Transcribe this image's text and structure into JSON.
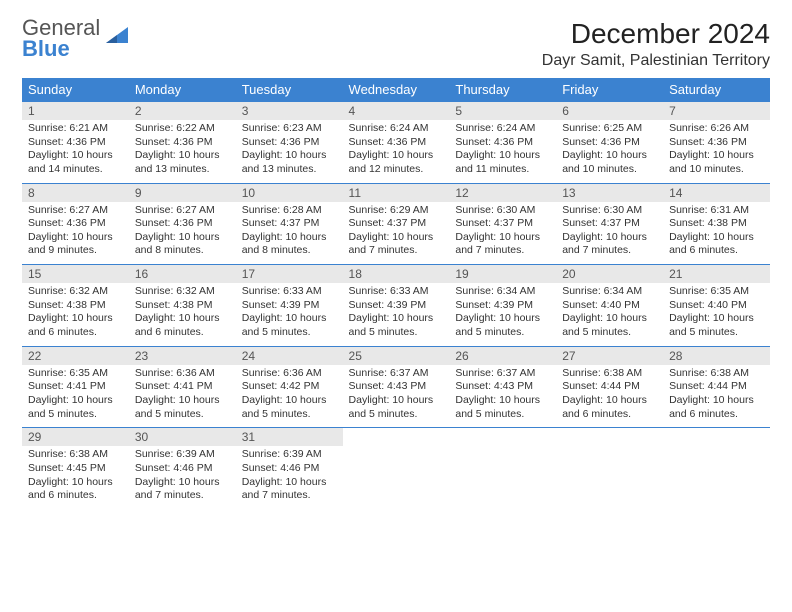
{
  "logo": {
    "line1": "General",
    "line2": "Blue"
  },
  "title": "December 2024",
  "location": "Dayr Samit, Palestinian Territory",
  "colors": {
    "header_bg": "#3b82d0",
    "header_text": "#ffffff",
    "daynum_bg": "#e8e8e8",
    "row_border": "#3b82d0",
    "body_text": "#333333",
    "logo_gray": "#555555",
    "logo_blue": "#3b82d0",
    "page_bg": "#ffffff"
  },
  "typography": {
    "title_fontsize": 28,
    "location_fontsize": 16,
    "weekday_fontsize": 13,
    "daynum_fontsize": 12,
    "body_fontsize": 10.5
  },
  "weekdays": [
    "Sunday",
    "Monday",
    "Tuesday",
    "Wednesday",
    "Thursday",
    "Friday",
    "Saturday"
  ],
  "weeks": [
    [
      {
        "n": "1",
        "sr": "Sunrise: 6:21 AM",
        "ss": "Sunset: 4:36 PM",
        "d1": "Daylight: 10 hours",
        "d2": "and 14 minutes."
      },
      {
        "n": "2",
        "sr": "Sunrise: 6:22 AM",
        "ss": "Sunset: 4:36 PM",
        "d1": "Daylight: 10 hours",
        "d2": "and 13 minutes."
      },
      {
        "n": "3",
        "sr": "Sunrise: 6:23 AM",
        "ss": "Sunset: 4:36 PM",
        "d1": "Daylight: 10 hours",
        "d2": "and 13 minutes."
      },
      {
        "n": "4",
        "sr": "Sunrise: 6:24 AM",
        "ss": "Sunset: 4:36 PM",
        "d1": "Daylight: 10 hours",
        "d2": "and 12 minutes."
      },
      {
        "n": "5",
        "sr": "Sunrise: 6:24 AM",
        "ss": "Sunset: 4:36 PM",
        "d1": "Daylight: 10 hours",
        "d2": "and 11 minutes."
      },
      {
        "n": "6",
        "sr": "Sunrise: 6:25 AM",
        "ss": "Sunset: 4:36 PM",
        "d1": "Daylight: 10 hours",
        "d2": "and 10 minutes."
      },
      {
        "n": "7",
        "sr": "Sunrise: 6:26 AM",
        "ss": "Sunset: 4:36 PM",
        "d1": "Daylight: 10 hours",
        "d2": "and 10 minutes."
      }
    ],
    [
      {
        "n": "8",
        "sr": "Sunrise: 6:27 AM",
        "ss": "Sunset: 4:36 PM",
        "d1": "Daylight: 10 hours",
        "d2": "and 9 minutes."
      },
      {
        "n": "9",
        "sr": "Sunrise: 6:27 AM",
        "ss": "Sunset: 4:36 PM",
        "d1": "Daylight: 10 hours",
        "d2": "and 8 minutes."
      },
      {
        "n": "10",
        "sr": "Sunrise: 6:28 AM",
        "ss": "Sunset: 4:37 PM",
        "d1": "Daylight: 10 hours",
        "d2": "and 8 minutes."
      },
      {
        "n": "11",
        "sr": "Sunrise: 6:29 AM",
        "ss": "Sunset: 4:37 PM",
        "d1": "Daylight: 10 hours",
        "d2": "and 7 minutes."
      },
      {
        "n": "12",
        "sr": "Sunrise: 6:30 AM",
        "ss": "Sunset: 4:37 PM",
        "d1": "Daylight: 10 hours",
        "d2": "and 7 minutes."
      },
      {
        "n": "13",
        "sr": "Sunrise: 6:30 AM",
        "ss": "Sunset: 4:37 PM",
        "d1": "Daylight: 10 hours",
        "d2": "and 7 minutes."
      },
      {
        "n": "14",
        "sr": "Sunrise: 6:31 AM",
        "ss": "Sunset: 4:38 PM",
        "d1": "Daylight: 10 hours",
        "d2": "and 6 minutes."
      }
    ],
    [
      {
        "n": "15",
        "sr": "Sunrise: 6:32 AM",
        "ss": "Sunset: 4:38 PM",
        "d1": "Daylight: 10 hours",
        "d2": "and 6 minutes."
      },
      {
        "n": "16",
        "sr": "Sunrise: 6:32 AM",
        "ss": "Sunset: 4:38 PM",
        "d1": "Daylight: 10 hours",
        "d2": "and 6 minutes."
      },
      {
        "n": "17",
        "sr": "Sunrise: 6:33 AM",
        "ss": "Sunset: 4:39 PM",
        "d1": "Daylight: 10 hours",
        "d2": "and 5 minutes."
      },
      {
        "n": "18",
        "sr": "Sunrise: 6:33 AM",
        "ss": "Sunset: 4:39 PM",
        "d1": "Daylight: 10 hours",
        "d2": "and 5 minutes."
      },
      {
        "n": "19",
        "sr": "Sunrise: 6:34 AM",
        "ss": "Sunset: 4:39 PM",
        "d1": "Daylight: 10 hours",
        "d2": "and 5 minutes."
      },
      {
        "n": "20",
        "sr": "Sunrise: 6:34 AM",
        "ss": "Sunset: 4:40 PM",
        "d1": "Daylight: 10 hours",
        "d2": "and 5 minutes."
      },
      {
        "n": "21",
        "sr": "Sunrise: 6:35 AM",
        "ss": "Sunset: 4:40 PM",
        "d1": "Daylight: 10 hours",
        "d2": "and 5 minutes."
      }
    ],
    [
      {
        "n": "22",
        "sr": "Sunrise: 6:35 AM",
        "ss": "Sunset: 4:41 PM",
        "d1": "Daylight: 10 hours",
        "d2": "and 5 minutes."
      },
      {
        "n": "23",
        "sr": "Sunrise: 6:36 AM",
        "ss": "Sunset: 4:41 PM",
        "d1": "Daylight: 10 hours",
        "d2": "and 5 minutes."
      },
      {
        "n": "24",
        "sr": "Sunrise: 6:36 AM",
        "ss": "Sunset: 4:42 PM",
        "d1": "Daylight: 10 hours",
        "d2": "and 5 minutes."
      },
      {
        "n": "25",
        "sr": "Sunrise: 6:37 AM",
        "ss": "Sunset: 4:43 PM",
        "d1": "Daylight: 10 hours",
        "d2": "and 5 minutes."
      },
      {
        "n": "26",
        "sr": "Sunrise: 6:37 AM",
        "ss": "Sunset: 4:43 PM",
        "d1": "Daylight: 10 hours",
        "d2": "and 5 minutes."
      },
      {
        "n": "27",
        "sr": "Sunrise: 6:38 AM",
        "ss": "Sunset: 4:44 PM",
        "d1": "Daylight: 10 hours",
        "d2": "and 6 minutes."
      },
      {
        "n": "28",
        "sr": "Sunrise: 6:38 AM",
        "ss": "Sunset: 4:44 PM",
        "d1": "Daylight: 10 hours",
        "d2": "and 6 minutes."
      }
    ],
    [
      {
        "n": "29",
        "sr": "Sunrise: 6:38 AM",
        "ss": "Sunset: 4:45 PM",
        "d1": "Daylight: 10 hours",
        "d2": "and 6 minutes."
      },
      {
        "n": "30",
        "sr": "Sunrise: 6:39 AM",
        "ss": "Sunset: 4:46 PM",
        "d1": "Daylight: 10 hours",
        "d2": "and 7 minutes."
      },
      {
        "n": "31",
        "sr": "Sunrise: 6:39 AM",
        "ss": "Sunset: 4:46 PM",
        "d1": "Daylight: 10 hours",
        "d2": "and 7 minutes."
      },
      null,
      null,
      null,
      null
    ]
  ]
}
